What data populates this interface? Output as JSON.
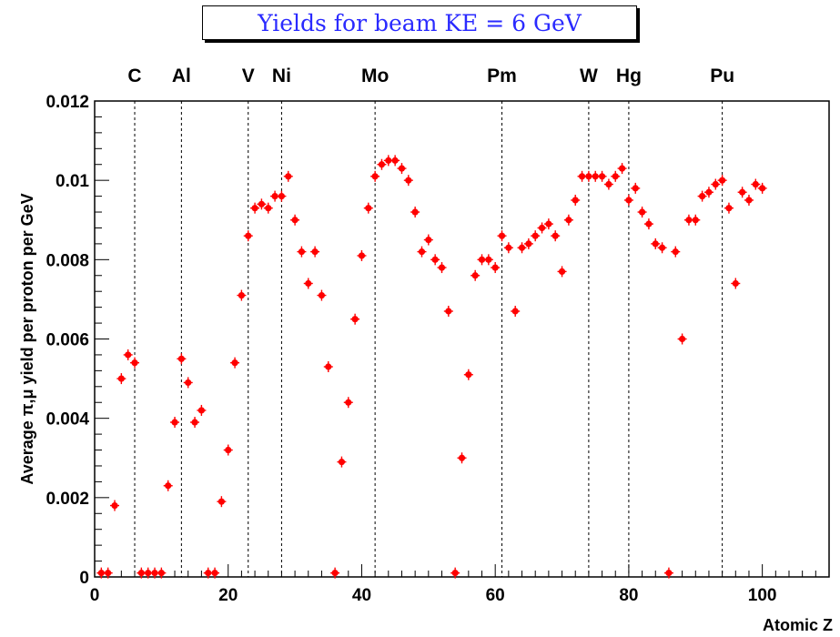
{
  "title": "Yields for beam KE = 6 GeV",
  "chart_data": {
    "type": "scatter",
    "title": "Yields for beam KE = 6 GeV",
    "xlabel": "Atomic Z",
    "ylabel": "Average π,μ yield per proton per GeV",
    "xlim": [
      0,
      110
    ],
    "ylim": [
      0,
      0.012
    ],
    "x_ticks": [
      0,
      20,
      40,
      60,
      80,
      100
    ],
    "x_tick_labels": [
      "0",
      "20",
      "40",
      "60",
      "80",
      "100"
    ],
    "y_ticks": [
      0,
      0.002,
      0.004,
      0.006,
      0.008,
      0.01,
      0.012
    ],
    "y_tick_labels": [
      "0",
      "0.002",
      "0.004",
      "0.006",
      "0.008",
      "0.01",
      "0.012"
    ],
    "grid": false,
    "marker_color": "#ff0000",
    "element_markers": [
      {
        "label": "C",
        "z": 6
      },
      {
        "label": "Al",
        "z": 13
      },
      {
        "label": "V",
        "z": 23
      },
      {
        "label": "Ni",
        "z": 28
      },
      {
        "label": "Mo",
        "z": 42
      },
      {
        "label": "Pm",
        "z": 61
      },
      {
        "label": "W",
        "z": 74
      },
      {
        "label": "Hg",
        "z": 80
      },
      {
        "label": "Pu",
        "z": 94
      }
    ],
    "series": [
      {
        "points": [
          [
            1,
            0.0001
          ],
          [
            2,
            0.0001
          ],
          [
            3,
            0.0018
          ],
          [
            4,
            0.005
          ],
          [
            5,
            0.0056
          ],
          [
            6,
            0.0054
          ],
          [
            7,
            0.0001
          ],
          [
            8,
            0.0001
          ],
          [
            9,
            0.0001
          ],
          [
            10,
            0.0001
          ],
          [
            11,
            0.0023
          ],
          [
            12,
            0.0039
          ],
          [
            13,
            0.0055
          ],
          [
            14,
            0.0049
          ],
          [
            15,
            0.0039
          ],
          [
            16,
            0.0042
          ],
          [
            17,
            0.0001
          ],
          [
            18,
            0.0001
          ],
          [
            19,
            0.0019
          ],
          [
            20,
            0.0032
          ],
          [
            21,
            0.0054
          ],
          [
            22,
            0.0071
          ],
          [
            23,
            0.0086
          ],
          [
            24,
            0.0093
          ],
          [
            25,
            0.0094
          ],
          [
            26,
            0.0093
          ],
          [
            27,
            0.0096
          ],
          [
            28,
            0.0096
          ],
          [
            29,
            0.0101
          ],
          [
            30,
            0.009
          ],
          [
            31,
            0.0082
          ],
          [
            32,
            0.0074
          ],
          [
            33,
            0.0082
          ],
          [
            34,
            0.0071
          ],
          [
            35,
            0.0053
          ],
          [
            36,
            0.0001
          ],
          [
            37,
            0.0029
          ],
          [
            38,
            0.0044
          ],
          [
            39,
            0.0065
          ],
          [
            40,
            0.0081
          ],
          [
            41,
            0.0093
          ],
          [
            42,
            0.0101
          ],
          [
            43,
            0.0104
          ],
          [
            44,
            0.0105
          ],
          [
            45,
            0.0105
          ],
          [
            46,
            0.0103
          ],
          [
            47,
            0.01
          ],
          [
            48,
            0.0092
          ],
          [
            49,
            0.0082
          ],
          [
            50,
            0.0085
          ],
          [
            51,
            0.008
          ],
          [
            52,
            0.0078
          ],
          [
            53,
            0.0067
          ],
          [
            54,
            0.0001
          ],
          [
            55,
            0.003
          ],
          [
            56,
            0.0051
          ],
          [
            57,
            0.0076
          ],
          [
            58,
            0.008
          ],
          [
            59,
            0.008
          ],
          [
            60,
            0.0078
          ],
          [
            61,
            0.0086
          ],
          [
            62,
            0.0083
          ],
          [
            63,
            0.0067
          ],
          [
            64,
            0.0083
          ],
          [
            65,
            0.0084
          ],
          [
            66,
            0.0086
          ],
          [
            67,
            0.0088
          ],
          [
            68,
            0.0089
          ],
          [
            69,
            0.0086
          ],
          [
            70,
            0.0077
          ],
          [
            71,
            0.009
          ],
          [
            72,
            0.0095
          ],
          [
            73,
            0.0101
          ],
          [
            74,
            0.0101
          ],
          [
            75,
            0.0101
          ],
          [
            76,
            0.0101
          ],
          [
            77,
            0.0099
          ],
          [
            78,
            0.0101
          ],
          [
            79,
            0.0103
          ],
          [
            80,
            0.0095
          ],
          [
            81,
            0.0098
          ],
          [
            82,
            0.0092
          ],
          [
            83,
            0.0089
          ],
          [
            84,
            0.0084
          ],
          [
            85,
            0.0083
          ],
          [
            86,
            0.0001
          ],
          [
            87,
            0.0082
          ],
          [
            88,
            0.006
          ],
          [
            89,
            0.009
          ],
          [
            90,
            0.009
          ],
          [
            91,
            0.0096
          ],
          [
            92,
            0.0097
          ],
          [
            93,
            0.0099
          ],
          [
            94,
            0.01
          ],
          [
            95,
            0.0093
          ],
          [
            96,
            0.0074
          ],
          [
            97,
            0.0097
          ],
          [
            98,
            0.0095
          ],
          [
            99,
            0.0099
          ],
          [
            100,
            0.0098
          ]
        ]
      }
    ]
  }
}
